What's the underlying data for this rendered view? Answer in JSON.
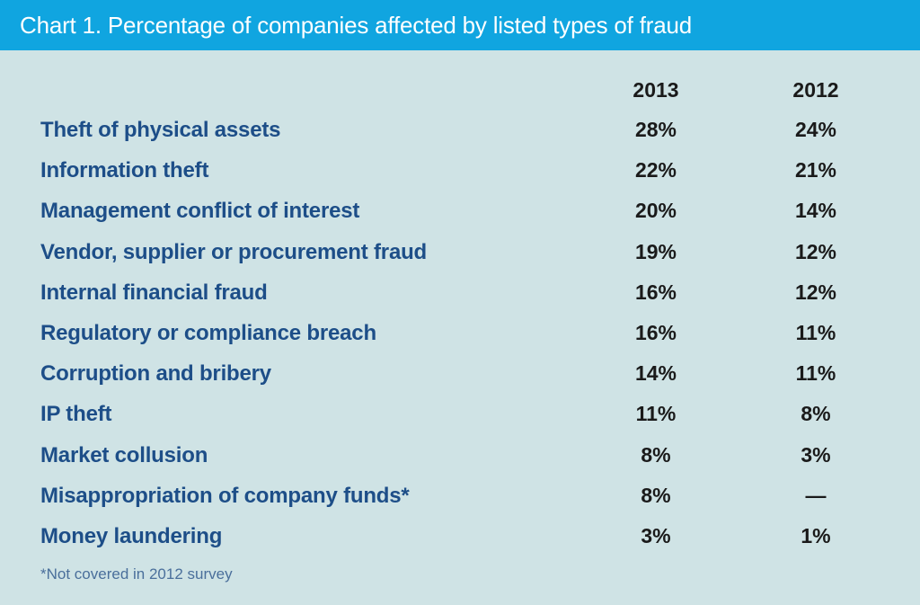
{
  "chart_data": {
    "type": "table",
    "title": "Chart 1. Percentage of companies affected by listed types of fraud",
    "columns": [
      "2013",
      "2012"
    ],
    "rows": [
      {
        "label": "Theft of physical assets",
        "values": [
          "28%",
          "24%"
        ]
      },
      {
        "label": "Information theft",
        "values": [
          "22%",
          "21%"
        ]
      },
      {
        "label": "Management conflict of interest",
        "values": [
          "20%",
          "14%"
        ]
      },
      {
        "label": "Vendor, supplier or procurement fraud",
        "values": [
          "19%",
          "12%"
        ]
      },
      {
        "label": "Internal financial fraud",
        "values": [
          "16%",
          "12%"
        ]
      },
      {
        "label": "Regulatory or compliance breach",
        "values": [
          "16%",
          "11%"
        ]
      },
      {
        "label": "Corruption and bribery",
        "values": [
          "14%",
          "11%"
        ]
      },
      {
        "label": "IP theft",
        "values": [
          "11%",
          "8%"
        ]
      },
      {
        "label": "Market collusion",
        "values": [
          "8%",
          "3%"
        ]
      },
      {
        "label": "Misappropriation of company funds*",
        "values": [
          "8%",
          "—"
        ]
      },
      {
        "label": "Money laundering",
        "values": [
          "3%",
          "1%"
        ]
      }
    ],
    "footnote": "*Not covered in 2012 survey"
  },
  "colors": {
    "title_bar": "#10a5e0",
    "background": "#cfe3e5",
    "row_label": "#1d4e88",
    "value_text": "#1a1a1a",
    "footnote": "#4a6f9b"
  }
}
